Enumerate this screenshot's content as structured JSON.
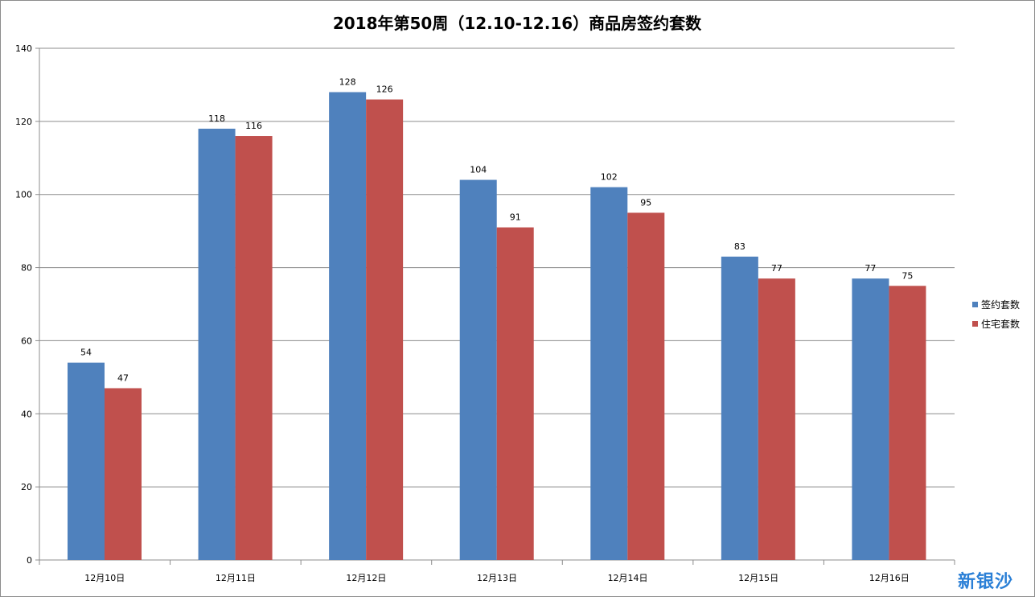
{
  "chart_data": {
    "type": "bar",
    "title": "2018年第50周（12.10-12.16）商品房签约套数",
    "categories": [
      "12月10日",
      "12月11日",
      "12月12日",
      "12月13日",
      "12月14日",
      "12月15日",
      "12月16日"
    ],
    "series": [
      {
        "name": "签约套数",
        "color": "#4f81bd",
        "values": [
          54,
          118,
          128,
          104,
          102,
          83,
          77
        ]
      },
      {
        "name": "住宅套数",
        "color": "#c0504d",
        "values": [
          47,
          116,
          126,
          91,
          95,
          77,
          75
        ]
      }
    ],
    "ylim": [
      0,
      140
    ],
    "yticks": [
      0,
      20,
      40,
      60,
      80,
      100,
      120,
      140
    ],
    "grid": true,
    "legend": "right"
  },
  "watermark": "新银沙"
}
